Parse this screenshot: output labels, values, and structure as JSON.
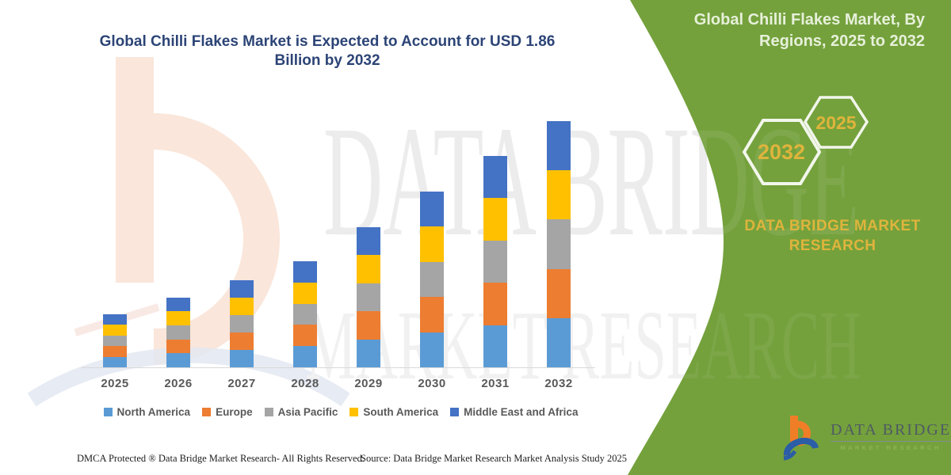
{
  "title": {
    "line1": "Global Chilli Flakes Market is Expected to Account for USD 1.86",
    "line2": "Billion by 2032"
  },
  "right_panel": {
    "heading_line1": "Global Chilli Flakes Market, By",
    "heading_line2": "Regions, 2025 to 2032",
    "hexagons": [
      {
        "label": "2032"
      },
      {
        "label": "2025"
      }
    ],
    "brand_line1": "DATA BRIDGE MARKET",
    "brand_line2": "RESEARCH",
    "panel_color": "#74A13C",
    "accent_gold": "#DFB43C"
  },
  "watermark": {
    "line1": "DATA BRIDGE",
    "line2": "MARKET RESEARCH"
  },
  "logo": {
    "name": "DATA BRIDGE",
    "subtitle": "MARKET RESEARCH"
  },
  "footer": {
    "left": "DMCA Protected ® Data Bridge Market Research-  All Rights Reserved.",
    "source": "Source: Data Bridge Market Research  Market Analysis Study 2025"
  },
  "chart_data": {
    "type": "bar",
    "stacked": true,
    "title": "Global Chilli Flakes Market is Expected to Account for USD 1.86 Billion by 2032",
    "unit": "USD billion",
    "categories": [
      "2025",
      "2026",
      "2027",
      "2028",
      "2029",
      "2030",
      "2031",
      "2032"
    ],
    "series": [
      {
        "name": "North America",
        "color": "#5B9BD5",
        "values": [
          0.08,
          0.106,
          0.132,
          0.16,
          0.212,
          0.266,
          0.32,
          0.372
        ]
      },
      {
        "name": "Europe",
        "color": "#ED7D31",
        "values": [
          0.08,
          0.106,
          0.132,
          0.16,
          0.212,
          0.266,
          0.32,
          0.372
        ]
      },
      {
        "name": "Asia Pacific",
        "color": "#A5A5A5",
        "values": [
          0.08,
          0.106,
          0.132,
          0.16,
          0.212,
          0.266,
          0.32,
          0.372
        ]
      },
      {
        "name": "South America",
        "color": "#FFC000",
        "values": [
          0.08,
          0.106,
          0.132,
          0.16,
          0.212,
          0.266,
          0.32,
          0.372
        ]
      },
      {
        "name": "Middle East and Africa",
        "color": "#4472C4",
        "values": [
          0.08,
          0.106,
          0.132,
          0.16,
          0.212,
          0.266,
          0.32,
          0.372
        ]
      }
    ],
    "totals": [
      0.4,
      0.53,
      0.66,
      0.8,
      1.06,
      1.33,
      1.6,
      1.86
    ],
    "ylim": [
      0,
      2.0
    ],
    "y_axis_visible": false,
    "x_axis_visible": true,
    "grid": false,
    "legend_position": "bottom"
  }
}
